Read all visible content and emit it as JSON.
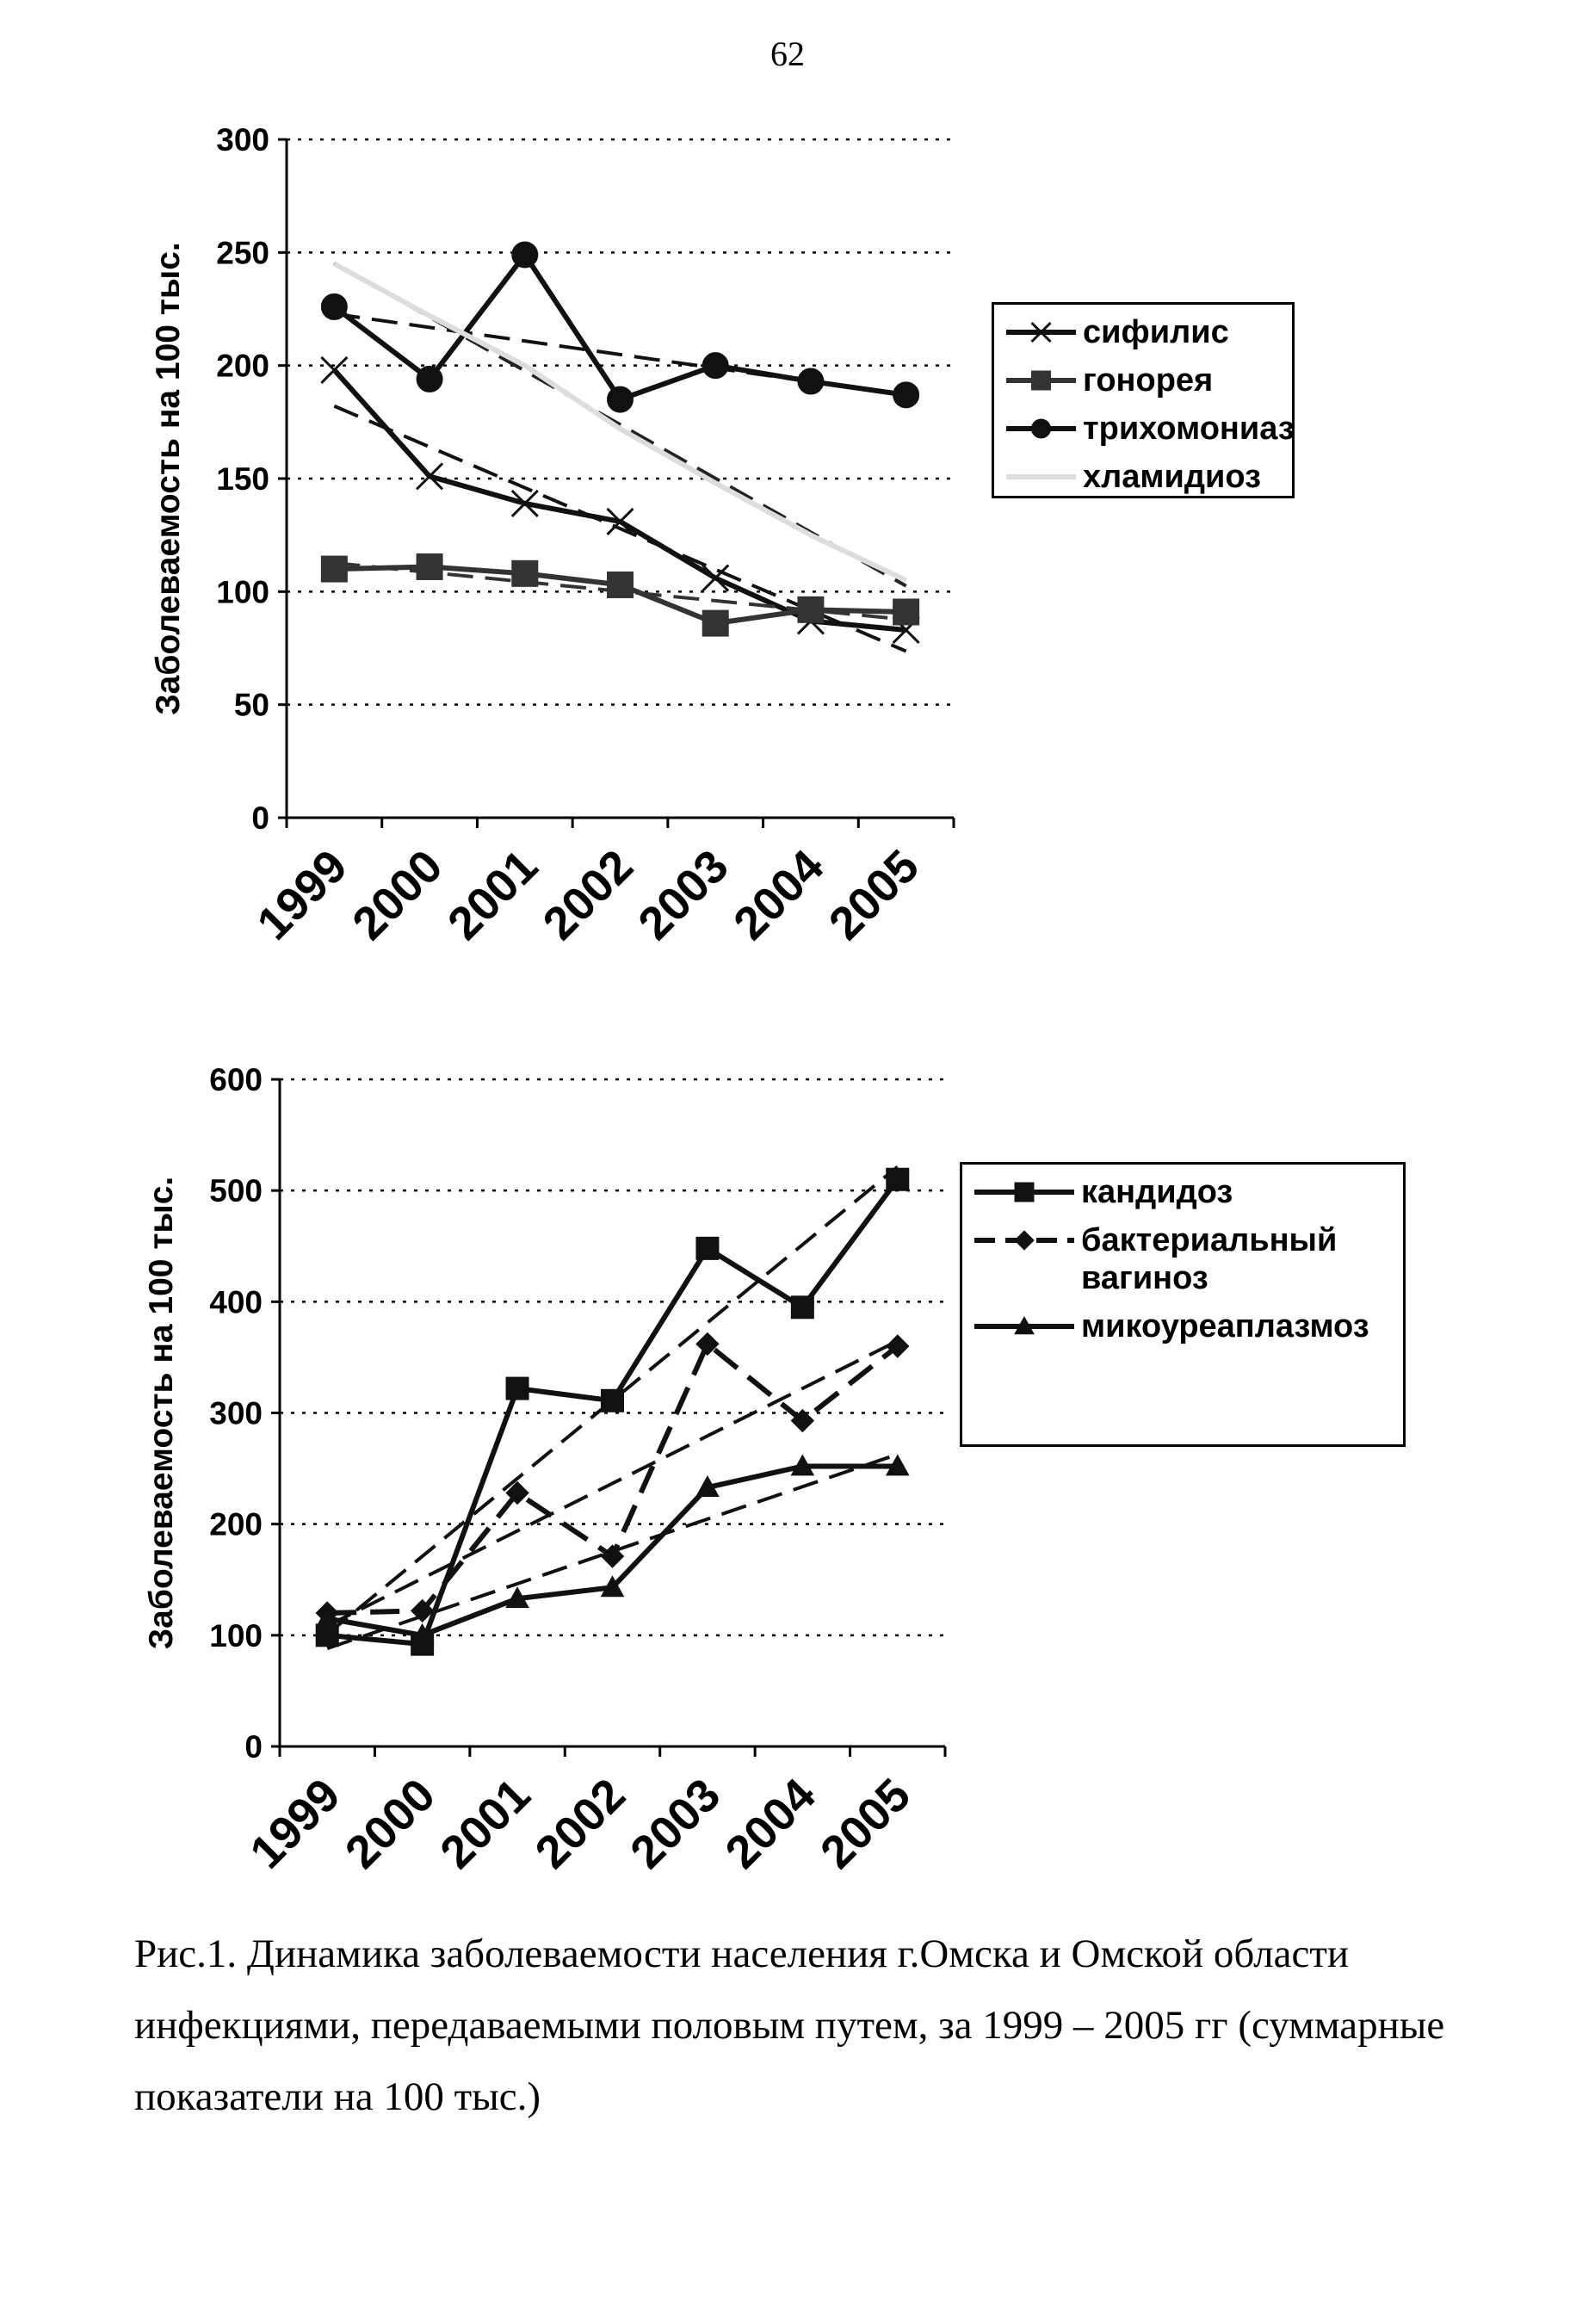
{
  "page_number": "62",
  "chart_data": [
    {
      "type": "line",
      "y_label": "Заболеваемость на 100 тыс.",
      "categories": [
        "1999",
        "2000",
        "2001",
        "2002",
        "2003",
        "2004",
        "2005"
      ],
      "ylim": [
        0,
        300
      ],
      "yticks": [
        0,
        50,
        100,
        150,
        200,
        250,
        300
      ],
      "grid": true,
      "trendline": true,
      "series": [
        {
          "name": "сифилис",
          "color": "#111111",
          "marker": "x",
          "values": [
            198,
            151,
            139,
            131,
            106,
            87,
            83
          ]
        },
        {
          "name": "гонорея",
          "color": "#333333",
          "marker": "square",
          "values": [
            110,
            111,
            108,
            103,
            86,
            92,
            91
          ]
        },
        {
          "name": "трихомониаз",
          "color": "#111111",
          "marker": "circle",
          "values": [
            226,
            194,
            249,
            185,
            200,
            193,
            187
          ]
        },
        {
          "name": "хламидиоз",
          "color": "#dddddd",
          "marker": "none",
          "values": [
            245,
            222,
            200,
            172,
            148,
            125,
            105
          ]
        }
      ]
    },
    {
      "type": "line",
      "y_label": "Заболеваемость на 100 тыс.",
      "categories": [
        "1999",
        "2000",
        "2001",
        "2002",
        "2003",
        "2004",
        "2005"
      ],
      "ylim": [
        0,
        600
      ],
      "yticks": [
        0,
        100,
        200,
        300,
        400,
        500,
        600
      ],
      "grid": true,
      "trendline": true,
      "series": [
        {
          "name": "кандидоз",
          "color": "#111111",
          "marker": "square",
          "values": [
            100,
            92,
            322,
            311,
            448,
            395,
            510
          ]
        },
        {
          "name": "бактериальный вагиноз",
          "color": "#111111",
          "marker": "diamond",
          "dashed": true,
          "values": [
            120,
            122,
            228,
            171,
            362,
            293,
            360
          ]
        },
        {
          "name": "микоуреаплазмоз",
          "color": "#111111",
          "marker": "triangle",
          "values": [
            115,
            100,
            133,
            143,
            233,
            252,
            252
          ]
        }
      ]
    }
  ],
  "caption": [
    "Рис.1. Динамика заболеваемости населения г.Омска и Омской области",
    "инфекциями, передаваемыми половым путем, за 1999 – 2005 гг (суммарные",
    "показатели на 100 тыс.)"
  ]
}
